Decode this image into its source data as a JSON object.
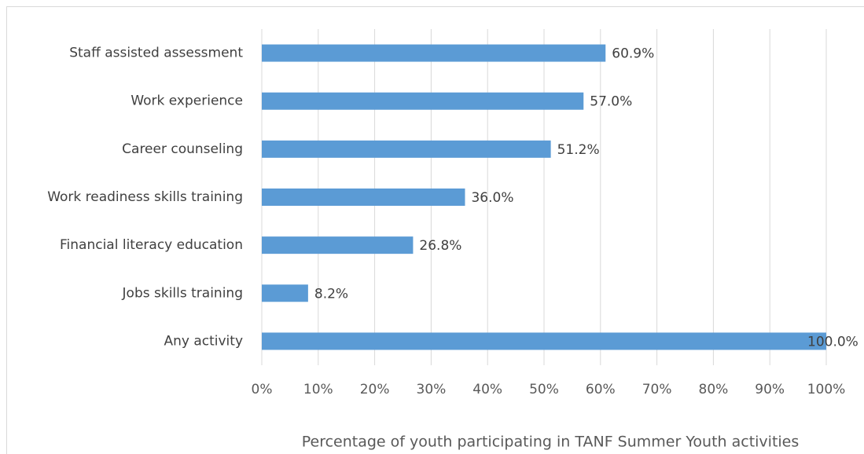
{
  "chart_data": {
    "type": "bar",
    "orientation": "horizontal",
    "x_label": "Percentage of youth participating in TANF Summer Youth activities",
    "categories": [
      "Staff assisted assessment",
      "Work experience",
      "Career counseling",
      "Work readiness skills training",
      "Financial literacy education",
      "Jobs skills training",
      "Any activity"
    ],
    "values": [
      60.9,
      57.0,
      51.2,
      36.0,
      26.8,
      8.2,
      100.0
    ],
    "value_labels": [
      "60.9%",
      "57.0%",
      "51.2%",
      "36.0%",
      "26.8%",
      "8.2%",
      "100.0%"
    ],
    "color": "#5b9bd5",
    "xlim": [
      0,
      100
    ],
    "xticks": [
      {
        "value": 0,
        "label": "0%"
      },
      {
        "value": 10,
        "label": "10%"
      },
      {
        "value": 20,
        "label": "20%"
      },
      {
        "value": 30,
        "label": "30%"
      },
      {
        "value": 40,
        "label": "40%"
      },
      {
        "value": 50,
        "label": "50%"
      },
      {
        "value": 60,
        "label": "60%"
      },
      {
        "value": 70,
        "label": "70%"
      },
      {
        "value": 80,
        "label": "80%"
      },
      {
        "value": 90,
        "label": "90%"
      },
      {
        "value": 100,
        "label": "100%"
      }
    ],
    "grid": true
  }
}
